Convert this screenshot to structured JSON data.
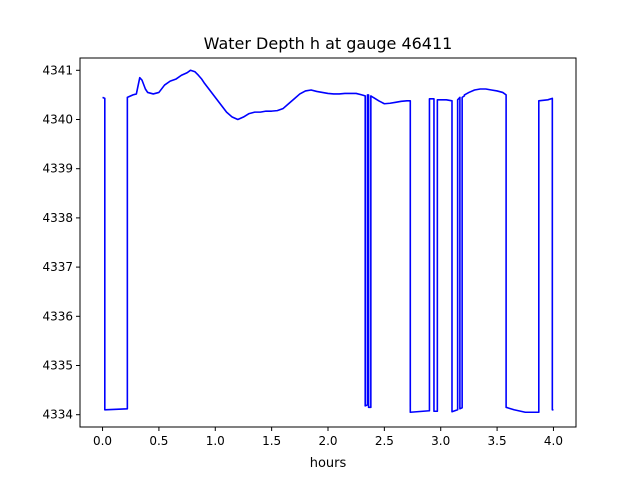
{
  "chart_data": {
    "type": "line",
    "title": "Water Depth h at gauge 46411",
    "xlabel": "hours",
    "ylabel": "",
    "xlim": [
      -0.2,
      4.2
    ],
    "ylim": [
      4333.75,
      4341.25
    ],
    "xticks": [
      0.0,
      0.5,
      1.0,
      1.5,
      2.0,
      2.5,
      3.0,
      3.5,
      4.0
    ],
    "xtick_labels": [
      "0.0",
      "0.5",
      "1.0",
      "1.5",
      "2.0",
      "2.5",
      "3.0",
      "3.5",
      "4.0"
    ],
    "yticks": [
      4334,
      4335,
      4336,
      4337,
      4338,
      4339,
      4340,
      4341
    ],
    "ytick_labels": [
      "4334",
      "4335",
      "4336",
      "4337",
      "4338",
      "4339",
      "4340",
      "4341"
    ],
    "grid": false,
    "legend": "none",
    "series": [
      {
        "color": "#0000ff",
        "x": [
          0.0,
          0.02,
          0.02,
          0.22,
          0.22,
          0.27,
          0.3,
          0.33,
          0.35,
          0.38,
          0.4,
          0.45,
          0.5,
          0.55,
          0.6,
          0.65,
          0.7,
          0.75,
          0.78,
          0.82,
          0.85,
          0.88,
          0.9,
          0.95,
          1.0,
          1.05,
          1.1,
          1.15,
          1.2,
          1.25,
          1.3,
          1.35,
          1.4,
          1.45,
          1.5,
          1.55,
          1.6,
          1.65,
          1.7,
          1.75,
          1.8,
          1.85,
          1.9,
          1.95,
          2.0,
          2.05,
          2.1,
          2.15,
          2.2,
          2.25,
          2.3,
          2.33,
          2.33,
          2.35,
          2.35,
          2.36,
          2.36,
          2.38,
          2.38,
          2.4,
          2.45,
          2.5,
          2.55,
          2.6,
          2.65,
          2.7,
          2.73,
          2.73,
          2.9,
          2.9,
          2.94,
          2.94,
          2.97,
          2.97,
          3.0,
          3.05,
          3.1,
          3.1,
          3.15,
          3.15,
          3.17,
          3.17,
          3.19,
          3.19,
          3.21,
          3.21,
          3.25,
          3.3,
          3.35,
          3.4,
          3.45,
          3.5,
          3.55,
          3.58,
          3.58,
          3.65,
          3.75,
          3.85,
          3.87,
          3.87,
          3.95,
          3.99,
          3.99,
          4.0
        ],
        "y": [
          4340.45,
          4340.43,
          4334.1,
          4334.12,
          4340.45,
          4340.5,
          4340.52,
          4340.85,
          4340.8,
          4340.62,
          4340.55,
          4340.52,
          4340.55,
          4340.7,
          4340.78,
          4340.82,
          4340.9,
          4340.95,
          4341.0,
          4340.97,
          4340.9,
          4340.82,
          4340.75,
          4340.6,
          4340.45,
          4340.3,
          4340.15,
          4340.05,
          4340.0,
          4340.05,
          4340.12,
          4340.15,
          4340.15,
          4340.17,
          4340.17,
          4340.18,
          4340.22,
          4340.32,
          4340.42,
          4340.52,
          4340.58,
          4340.6,
          4340.57,
          4340.55,
          4340.53,
          4340.52,
          4340.52,
          4340.53,
          4340.53,
          4340.53,
          4340.5,
          4340.48,
          4334.18,
          4334.2,
          4340.5,
          4340.5,
          4334.15,
          4334.15,
          4340.48,
          4340.45,
          4340.38,
          4340.32,
          4340.33,
          4340.35,
          4340.37,
          4340.38,
          4340.38,
          4334.05,
          4334.08,
          4340.42,
          4340.42,
          4334.07,
          4334.07,
          4340.4,
          4340.4,
          4340.4,
          4340.38,
          4334.06,
          4334.1,
          4340.4,
          4340.45,
          4334.12,
          4334.14,
          4340.45,
          4340.48,
          4340.5,
          4340.55,
          4340.6,
          4340.62,
          4340.62,
          4340.6,
          4340.58,
          4340.55,
          4340.5,
          4334.15,
          4334.1,
          4334.05,
          4334.05,
          4334.05,
          4340.38,
          4340.4,
          4340.43,
          4334.1,
          4334.1
        ]
      }
    ]
  }
}
